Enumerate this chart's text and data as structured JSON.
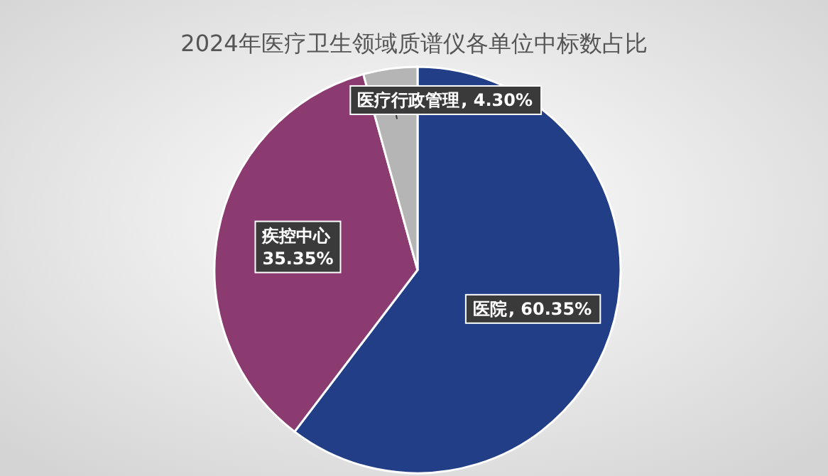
{
  "chart_data": {
    "type": "pie",
    "title": "2024年医疗卫生领域质谱仪各单位中标数占比",
    "categories": [
      "医院",
      "疾控中心",
      "医疗行政管理"
    ],
    "values": [
      60.35,
      35.35,
      4.3
    ],
    "colors": [
      "#213e86",
      "#8c3b70",
      "#b5b5b5"
    ],
    "value_labels": [
      ", 60.35%",
      "35.35%",
      ", 4.30%"
    ],
    "legend": false
  }
}
